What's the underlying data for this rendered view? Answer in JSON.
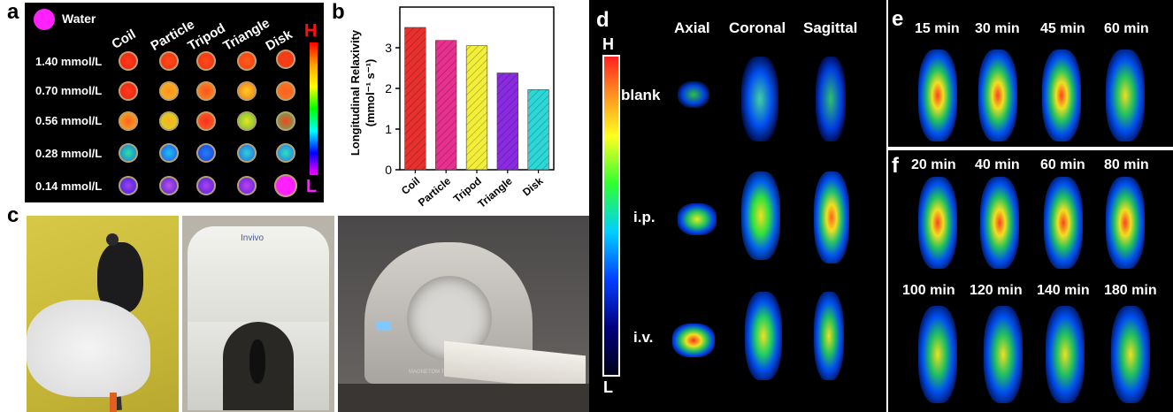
{
  "panels": {
    "a": {
      "label": "a",
      "legend": "Water",
      "columns": [
        "Coil",
        "Particle",
        "Tripod",
        "Triangle",
        "Disk"
      ],
      "rows": [
        "1.40 mmol/L",
        "0.70 mmol/L",
        "0.56 mmol/L",
        "0.28 mmol/L",
        "0.14 mmol/L"
      ],
      "scale_high": "H",
      "scale_low": "L"
    },
    "b": {
      "label": "b",
      "ylabel_line1": "Longitudinal Relaxivity",
      "ylabel_line2": "(mmol⁻¹ s⁻¹)"
    },
    "c": {
      "label": "c",
      "brand": "Invivo",
      "scanner": "MAGNETOM Trio"
    },
    "d": {
      "label": "d",
      "columns": [
        "Axial",
        "Coronal",
        "Sagittal"
      ],
      "rows": [
        "blank",
        "i.p.",
        "i.v."
      ],
      "scale_high": "H",
      "scale_low": "L"
    },
    "e": {
      "label": "e",
      "times": [
        "15 min",
        "30 min",
        "45 min",
        "60 min"
      ]
    },
    "f": {
      "label": "f",
      "times_top": [
        "20 min",
        "40 min",
        "60 min",
        "80 min"
      ],
      "times_bottom": [
        "100 min",
        "120 min",
        "140 min",
        "180 min"
      ]
    }
  },
  "chart_data": {
    "type": "bar",
    "categories": [
      "Coil",
      "Particle",
      "Tripod",
      "Triangle",
      "Disk"
    ],
    "values": [
      3.5,
      3.18,
      3.05,
      2.38,
      1.97
    ],
    "colors": [
      "#e8312f",
      "#e8308f",
      "#f2ee3a",
      "#8a2be2",
      "#2ed7d7"
    ],
    "ylabel": "Longitudinal Relaxivity (mmol⁻¹ s⁻¹)",
    "ylim": [
      0,
      4
    ],
    "yticks": [
      "0",
      "1",
      "2",
      "3"
    ]
  }
}
